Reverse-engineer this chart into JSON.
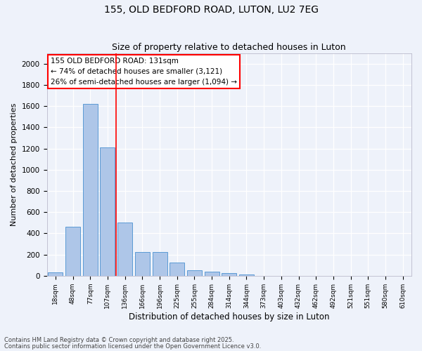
{
  "title1": "155, OLD BEDFORD ROAD, LUTON, LU2 7EG",
  "title2": "Size of property relative to detached houses in Luton",
  "xlabel": "Distribution of detached houses by size in Luton",
  "ylabel": "Number of detached properties",
  "categories": [
    "18sqm",
    "48sqm",
    "77sqm",
    "107sqm",
    "136sqm",
    "166sqm",
    "196sqm",
    "225sqm",
    "255sqm",
    "284sqm",
    "314sqm",
    "344sqm",
    "373sqm",
    "403sqm",
    "432sqm",
    "462sqm",
    "492sqm",
    "521sqm",
    "551sqm",
    "580sqm",
    "610sqm"
  ],
  "values": [
    35,
    460,
    1620,
    1210,
    505,
    225,
    225,
    125,
    50,
    40,
    25,
    15,
    0,
    0,
    0,
    0,
    0,
    0,
    0,
    0,
    0
  ],
  "bar_color": "#aec6e8",
  "bar_edge_color": "#5b9bd5",
  "vline_color": "red",
  "vline_x": 3.5,
  "annotation_text": "155 OLD BEDFORD ROAD: 131sqm\n← 74% of detached houses are smaller (3,121)\n26% of semi-detached houses are larger (1,094) →",
  "annotation_box_color": "white",
  "annotation_box_edge": "red",
  "ylim": [
    0,
    2100
  ],
  "yticks": [
    0,
    200,
    400,
    600,
    800,
    1000,
    1200,
    1400,
    1600,
    1800,
    2000
  ],
  "footer1": "Contains HM Land Registry data © Crown copyright and database right 2025.",
  "footer2": "Contains public sector information licensed under the Open Government Licence v3.0.",
  "bg_color": "#eef2fa",
  "title_fontsize": 10,
  "subtitle_fontsize": 9
}
